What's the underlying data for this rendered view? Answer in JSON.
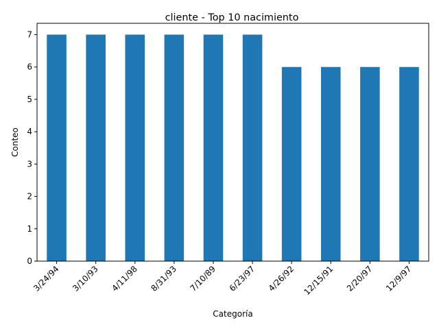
{
  "chart_data": {
    "type": "bar",
    "title": "cliente - Top 10 nacimiento",
    "xlabel": "Categoría",
    "ylabel": "Conteo",
    "categories": [
      "3/24/94",
      "3/10/93",
      "4/11/98",
      "8/31/93",
      "7/10/89",
      "6/23/97",
      "4/26/92",
      "12/15/91",
      "2/20/97",
      "12/9/97"
    ],
    "values": [
      7,
      7,
      7,
      7,
      7,
      7,
      6,
      6,
      6,
      6
    ],
    "ylim": [
      0,
      7.35
    ],
    "yticks": [
      0,
      1,
      2,
      3,
      4,
      5,
      6,
      7
    ],
    "bar_color": "#1f77b4",
    "grid": false,
    "legend": "none"
  }
}
